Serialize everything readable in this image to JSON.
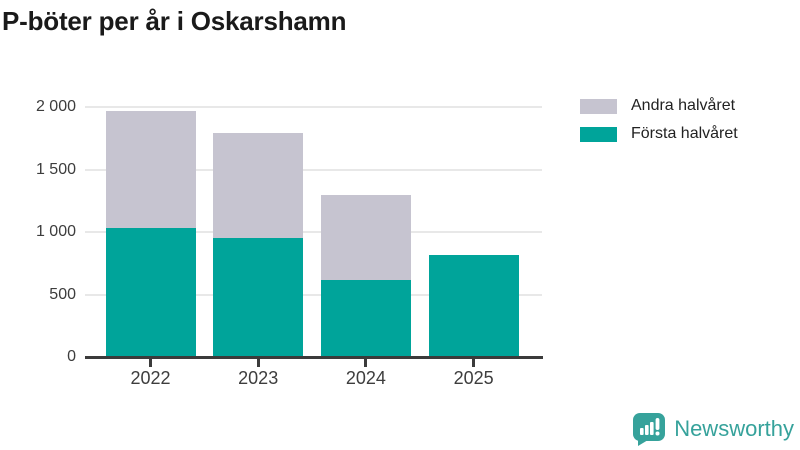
{
  "title": "P-böter per år i Oskarshamn",
  "legend": [
    {
      "label": "Andra halvåret",
      "color": "#c6c4d0"
    },
    {
      "label": "Första halvåret",
      "color": "#00a49a"
    }
  ],
  "branding": {
    "name": "Newsworthy",
    "color": "#36a29b"
  },
  "colors": {
    "first_half": "#00a49a",
    "second_half": "#c6c4d0",
    "gridline": "#e8e8e8",
    "axis": "#3b3b3b",
    "title_text": "#1a1a1a",
    "tick_text": "#3d3d3d"
  },
  "chart_data": {
    "type": "bar",
    "stacked": true,
    "title": "P-böter per år i Oskarshamn",
    "categories": [
      "2022",
      "2023",
      "2024",
      "2025"
    ],
    "series": [
      {
        "name": "Första halvåret",
        "color": "#00a49a",
        "values": [
          1030,
          950,
          620,
          820
        ]
      },
      {
        "name": "Andra halvåret",
        "color": "#c6c4d0",
        "values": [
          940,
          840,
          680,
          0
        ]
      }
    ],
    "totals": [
      1970,
      1790,
      1300,
      820
    ],
    "xlabel": "",
    "ylabel": "",
    "ylim": [
      0,
      2000
    ],
    "yticks": [
      0,
      500,
      1000,
      1500,
      2000
    ],
    "ytick_labels": [
      "0",
      "500",
      "1 000",
      "1 500",
      "2 000"
    ],
    "grid": true,
    "legend_position": "top-right"
  }
}
